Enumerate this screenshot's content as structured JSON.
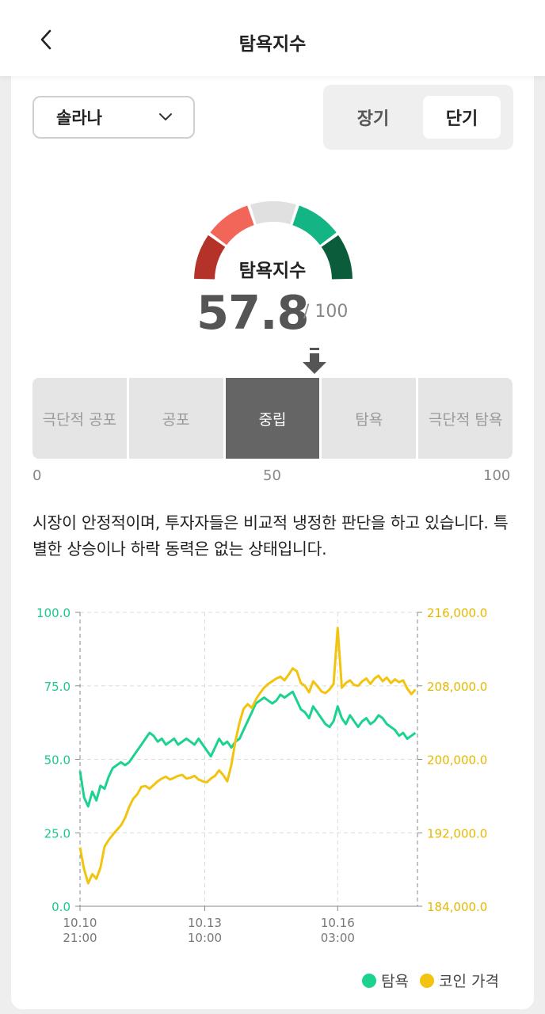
{
  "header": {
    "title": "탐욕지수"
  },
  "controls": {
    "coin": "솔라나",
    "period_long": "장기",
    "period_short": "단기",
    "selected_period": "단기"
  },
  "gauge": {
    "label": "탐욕지수",
    "score": "57.8",
    "max": "/ 100",
    "score_value": 57.8,
    "segment_colors": [
      "#b5322a",
      "#f2665a",
      "#e0e0e0",
      "#14b584",
      "#0a5c3b"
    ]
  },
  "bands": {
    "items": [
      "극단적 공포",
      "공포",
      "중립",
      "탐욕",
      "극단적 탐욕"
    ],
    "active": "중립",
    "scale": [
      "0",
      "50",
      "100"
    ]
  },
  "description": "시장이 안정적이며, 투자자들은 비교적 냉정한 판단을 하고 있습니다. 특별한 상승이나 하락 동력은 없는 상태입니다.",
  "legend": {
    "greed": "탐욕",
    "price": "코인 가격"
  },
  "colors": {
    "greed": "#1bd38e",
    "price": "#f2c40f"
  },
  "chart_data": {
    "type": "line",
    "x_ticks": [
      {
        "day": "10.10",
        "time": "21:00",
        "t": 0
      },
      {
        "day": "10.13",
        "time": "10:00",
        "t": 61
      },
      {
        "day": "10.16",
        "time": "03:00",
        "t": 126
      }
    ],
    "y_left": {
      "ylim": [
        0,
        100
      ],
      "ticks": [
        "0.0",
        "25.0",
        "50.0",
        "75.0",
        "100.0"
      ]
    },
    "y_right": {
      "ylim": [
        184000,
        216000
      ],
      "ticks": [
        "184,000.0",
        "192,000.0",
        "200,000.0",
        "208,000.0",
        "216,000.0"
      ]
    },
    "x_range_hours": [
      0,
      165
    ],
    "series": [
      {
        "name": "탐욕",
        "axis": "left",
        "values": [
          [
            0,
            46
          ],
          [
            2,
            37
          ],
          [
            4,
            34
          ],
          [
            6,
            39
          ],
          [
            8,
            36
          ],
          [
            10,
            41
          ],
          [
            12,
            40
          ],
          [
            14,
            44
          ],
          [
            16,
            47
          ],
          [
            18,
            48
          ],
          [
            20,
            49
          ],
          [
            22,
            48
          ],
          [
            24,
            49
          ],
          [
            26,
            51
          ],
          [
            28,
            53
          ],
          [
            30,
            55
          ],
          [
            32,
            57
          ],
          [
            34,
            59
          ],
          [
            36,
            58
          ],
          [
            38,
            56
          ],
          [
            40,
            57
          ],
          [
            42,
            55
          ],
          [
            44,
            56
          ],
          [
            46,
            57
          ],
          [
            48,
            55
          ],
          [
            50,
            56
          ],
          [
            52,
            57
          ],
          [
            54,
            56
          ],
          [
            56,
            55
          ],
          [
            58,
            57
          ],
          [
            60,
            55
          ],
          [
            62,
            53
          ],
          [
            64,
            51
          ],
          [
            66,
            54
          ],
          [
            68,
            57
          ],
          [
            70,
            55
          ],
          [
            72,
            56
          ],
          [
            74,
            54
          ],
          [
            76,
            56
          ],
          [
            78,
            57
          ],
          [
            80,
            60
          ],
          [
            82,
            63
          ],
          [
            84,
            66
          ],
          [
            86,
            69
          ],
          [
            88,
            70
          ],
          [
            90,
            71
          ],
          [
            92,
            70
          ],
          [
            94,
            69
          ],
          [
            96,
            70
          ],
          [
            98,
            72
          ],
          [
            100,
            71
          ],
          [
            102,
            72
          ],
          [
            104,
            73
          ],
          [
            106,
            70
          ],
          [
            108,
            67
          ],
          [
            110,
            66
          ],
          [
            112,
            64
          ],
          [
            114,
            68
          ],
          [
            116,
            66
          ],
          [
            118,
            64
          ],
          [
            120,
            62
          ],
          [
            122,
            61
          ],
          [
            124,
            63
          ],
          [
            126,
            68
          ],
          [
            128,
            64
          ],
          [
            130,
            62
          ],
          [
            132,
            65
          ],
          [
            134,
            63
          ],
          [
            136,
            61
          ],
          [
            138,
            63
          ],
          [
            140,
            64
          ],
          [
            142,
            62
          ],
          [
            144,
            63
          ],
          [
            146,
            65
          ],
          [
            148,
            64
          ],
          [
            150,
            62
          ],
          [
            152,
            61
          ],
          [
            154,
            60
          ],
          [
            156,
            58
          ],
          [
            158,
            59
          ],
          [
            160,
            57
          ],
          [
            162,
            58
          ],
          [
            164,
            59
          ]
        ]
      },
      {
        "name": "코인 가격",
        "axis": "right",
        "values": [
          [
            0,
            190400
          ],
          [
            2,
            188000
          ],
          [
            4,
            186500
          ],
          [
            6,
            187500
          ],
          [
            8,
            187000
          ],
          [
            10,
            188200
          ],
          [
            12,
            190500
          ],
          [
            14,
            191200
          ],
          [
            16,
            191800
          ],
          [
            18,
            192300
          ],
          [
            20,
            192800
          ],
          [
            22,
            193600
          ],
          [
            24,
            194800
          ],
          [
            26,
            195700
          ],
          [
            28,
            196200
          ],
          [
            30,
            197000
          ],
          [
            32,
            197100
          ],
          [
            34,
            196800
          ],
          [
            36,
            197200
          ],
          [
            38,
            197600
          ],
          [
            40,
            197900
          ],
          [
            42,
            198100
          ],
          [
            44,
            197800
          ],
          [
            46,
            198000
          ],
          [
            48,
            198200
          ],
          [
            50,
            198300
          ],
          [
            52,
            197900
          ],
          [
            54,
            198000
          ],
          [
            56,
            198200
          ],
          [
            58,
            197800
          ],
          [
            60,
            197600
          ],
          [
            62,
            197500
          ],
          [
            64,
            197900
          ],
          [
            66,
            198200
          ],
          [
            68,
            198800
          ],
          [
            70,
            198300
          ],
          [
            72,
            197600
          ],
          [
            74,
            199400
          ],
          [
            76,
            202000
          ],
          [
            78,
            204000
          ],
          [
            80,
            205500
          ],
          [
            82,
            206000
          ],
          [
            84,
            205600
          ],
          [
            86,
            206500
          ],
          [
            88,
            207200
          ],
          [
            90,
            207800
          ],
          [
            92,
            208200
          ],
          [
            94,
            208500
          ],
          [
            96,
            208800
          ],
          [
            98,
            209000
          ],
          [
            100,
            208600
          ],
          [
            102,
            209200
          ],
          [
            104,
            209900
          ],
          [
            106,
            209600
          ],
          [
            108,
            208300
          ],
          [
            110,
            208000
          ],
          [
            112,
            207300
          ],
          [
            114,
            208500
          ],
          [
            116,
            208000
          ],
          [
            118,
            207400
          ],
          [
            120,
            207200
          ],
          [
            122,
            207600
          ],
          [
            124,
            208200
          ],
          [
            126,
            214300
          ],
          [
            128,
            207800
          ],
          [
            130,
            208300
          ],
          [
            132,
            208600
          ],
          [
            134,
            208100
          ],
          [
            136,
            208000
          ],
          [
            138,
            208500
          ],
          [
            140,
            208800
          ],
          [
            142,
            208200
          ],
          [
            144,
            208800
          ],
          [
            146,
            209100
          ],
          [
            148,
            208500
          ],
          [
            150,
            208900
          ],
          [
            152,
            208300
          ],
          [
            154,
            208700
          ],
          [
            156,
            208400
          ],
          [
            158,
            208600
          ],
          [
            160,
            207700
          ],
          [
            162,
            207100
          ],
          [
            164,
            207600
          ]
        ]
      }
    ]
  }
}
